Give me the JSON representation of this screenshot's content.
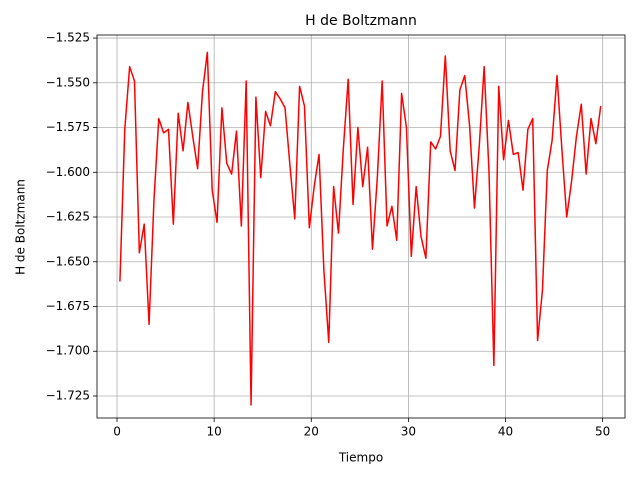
{
  "chart_data": {
    "type": "line",
    "title": "H de Boltzmann",
    "x_label": "Tiempo",
    "y_label": "H de Boltzmann",
    "grid": true,
    "xlim": [
      -2.06,
      52.3
    ],
    "xticks": [
      0,
      10,
      20,
      30,
      40,
      50
    ],
    "ylim": [
      -1.7373,
      -1.5233
    ],
    "yticks": [
      {
        "value": -1.525,
        "label": "−1.525"
      },
      {
        "value": -1.55,
        "label": "−1.550"
      },
      {
        "value": -1.575,
        "label": "−1.575"
      },
      {
        "value": -1.6,
        "label": "−1.600"
      },
      {
        "value": -1.625,
        "label": "−1.625"
      },
      {
        "value": -1.65,
        "label": "−1.650"
      },
      {
        "value": -1.675,
        "label": "−1.675"
      },
      {
        "value": -1.7,
        "label": "−1.700"
      },
      {
        "value": -1.725,
        "label": "−1.725"
      }
    ],
    "x": [
      0.3,
      0.8,
      1.3,
      1.8,
      2.3,
      2.8,
      3.3,
      3.8,
      4.3,
      4.8,
      5.3,
      5.8,
      6.3,
      6.8,
      7.3,
      7.8,
      8.3,
      8.8,
      9.3,
      9.8,
      10.3,
      10.8,
      11.3,
      11.8,
      12.3,
      12.8,
      13.3,
      13.8,
      14.3,
      14.8,
      15.3,
      15.8,
      16.3,
      16.8,
      17.3,
      17.8,
      18.3,
      18.8,
      19.3,
      19.8,
      20.3,
      20.8,
      21.3,
      21.8,
      22.3,
      22.8,
      23.3,
      23.8,
      24.3,
      24.8,
      25.3,
      25.8,
      26.3,
      26.8,
      27.3,
      27.8,
      28.3,
      28.8,
      29.3,
      29.8,
      30.3,
      30.8,
      31.3,
      31.8,
      32.3,
      32.8,
      33.3,
      33.8,
      34.3,
      34.8,
      35.3,
      35.8,
      36.3,
      36.8,
      37.3,
      37.8,
      38.3,
      38.8,
      39.3,
      39.8,
      40.3,
      40.8,
      41.3,
      41.8,
      42.3,
      42.8,
      43.3,
      43.8,
      44.3,
      44.8,
      45.3,
      45.8,
      46.3,
      46.8,
      47.3,
      47.8,
      48.3,
      48.8,
      49.3,
      49.8
    ],
    "series": [
      {
        "name": "H",
        "color": "#ff0000",
        "values": [
          -1.661,
          -1.576,
          -1.541,
          -1.549,
          -1.645,
          -1.629,
          -1.685,
          -1.616,
          -1.57,
          -1.578,
          -1.576,
          -1.629,
          -1.567,
          -1.588,
          -1.561,
          -1.58,
          -1.598,
          -1.555,
          -1.533,
          -1.61,
          -1.628,
          -1.564,
          -1.595,
          -1.601,
          -1.577,
          -1.63,
          -1.549,
          -1.73,
          -1.558,
          -1.603,
          -1.566,
          -1.574,
          -1.555,
          -1.559,
          -1.564,
          -1.596,
          -1.626,
          -1.552,
          -1.563,
          -1.631,
          -1.608,
          -1.59,
          -1.655,
          -1.695,
          -1.608,
          -1.634,
          -1.587,
          -1.548,
          -1.618,
          -1.575,
          -1.608,
          -1.586,
          -1.643,
          -1.603,
          -1.549,
          -1.63,
          -1.619,
          -1.638,
          -1.556,
          -1.575,
          -1.647,
          -1.608,
          -1.636,
          -1.648,
          -1.583,
          -1.587,
          -1.58,
          -1.535,
          -1.588,
          -1.599,
          -1.554,
          -1.546,
          -1.574,
          -1.62,
          -1.585,
          -1.541,
          -1.6,
          -1.708,
          -1.552,
          -1.593,
          -1.571,
          -1.59,
          -1.589,
          -1.61,
          -1.576,
          -1.57,
          -1.694,
          -1.666,
          -1.599,
          -1.582,
          -1.546,
          -1.587,
          -1.625,
          -1.605,
          -1.58,
          -1.562,
          -1.601,
          -1.57,
          -1.584,
          -1.563
        ]
      }
    ]
  }
}
